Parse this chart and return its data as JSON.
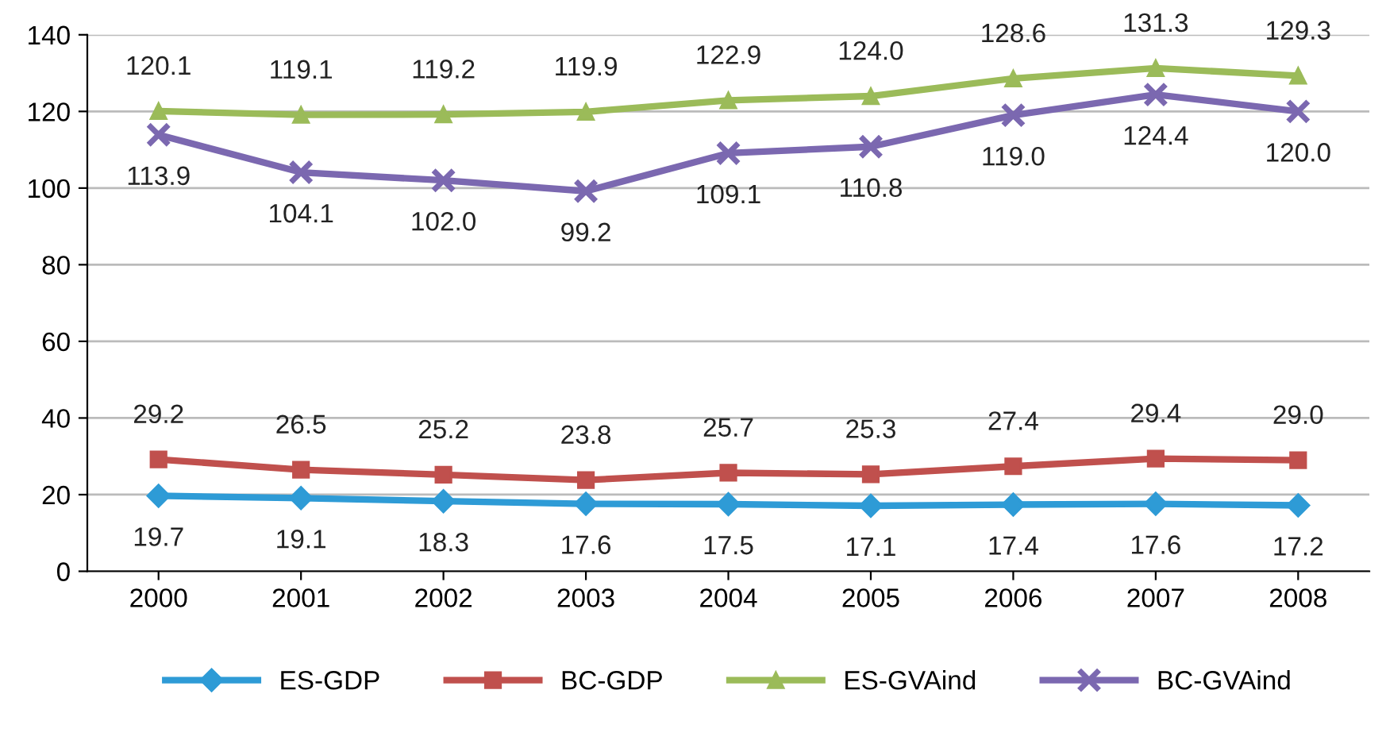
{
  "chart_data": {
    "type": "line",
    "categories": [
      "2000",
      "2001",
      "2002",
      "2003",
      "2004",
      "2005",
      "2006",
      "2007",
      "2008"
    ],
    "series": [
      {
        "name": "ES-GDP",
        "color": "#2e9bd6",
        "marker": "diamond",
        "values": [
          19.7,
          19.1,
          18.3,
          17.6,
          17.5,
          17.1,
          17.4,
          17.6,
          17.2
        ],
        "value_labels": [
          "19.7",
          "19.1",
          "18.3",
          "17.6",
          "17.5",
          "17.1",
          "17.4",
          "17.6",
          "17.2"
        ]
      },
      {
        "name": "BC-GDP",
        "color": "#c0504d",
        "marker": "square",
        "values": [
          29.2,
          26.5,
          25.2,
          23.8,
          25.7,
          25.3,
          27.4,
          29.4,
          29.0
        ],
        "value_labels": [
          "29.2",
          "26.5",
          "25.2",
          "23.8",
          "25.7",
          "25.3",
          "27.4",
          "29.4",
          "29.0"
        ]
      },
      {
        "name": "ES-GVAind",
        "color": "#9bbb59",
        "marker": "triangle",
        "values": [
          120.1,
          119.1,
          119.2,
          119.9,
          122.9,
          124.0,
          128.6,
          131.3,
          129.3
        ],
        "value_labels": [
          "120.1",
          "119.1",
          "119.2",
          "119.9",
          "122.9",
          "124.0",
          "128.6",
          "131.3",
          "129.3"
        ]
      },
      {
        "name": "BC-GVAind",
        "color": "#7b68b0",
        "marker": "cross",
        "values": [
          113.9,
          104.1,
          102.0,
          99.2,
          109.1,
          110.8,
          119.0,
          124.4,
          120.0
        ],
        "value_labels": [
          "113.9",
          "104.1",
          "102.0",
          "99.2",
          "109.1",
          "110.8",
          "119.0",
          "124.4",
          "120.0"
        ]
      }
    ],
    "ylim": [
      0,
      140
    ],
    "yticks": [
      0,
      20,
      40,
      60,
      80,
      100,
      120,
      140
    ],
    "grid": "y",
    "legend": "bottom",
    "line_style": "solid"
  }
}
